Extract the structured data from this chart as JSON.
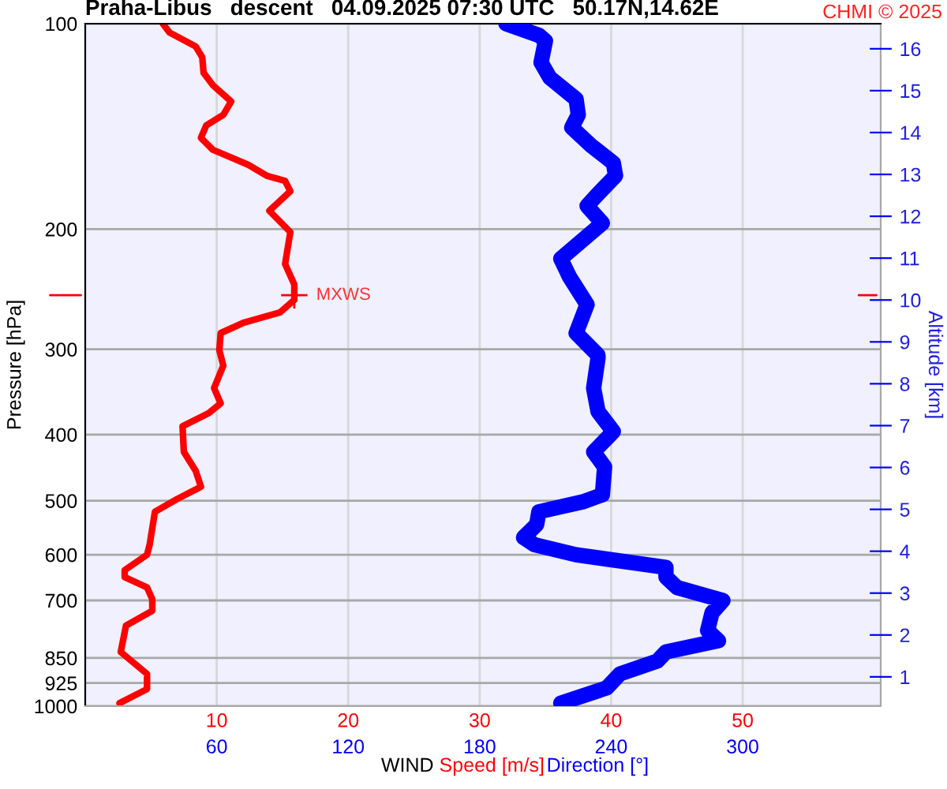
{
  "chart_data": {
    "type": "line",
    "title": "Praha-Libus   descent   04.09.2025 07:30 UTC   50.17N,14.62E",
    "xlabel": "WIND",
    "ylabel": "Pressure [hPa]",
    "y2label": "Altitude [km]",
    "annotations": [
      "CHMI © 2025",
      {
        "text": "MXWS",
        "x": 15.9,
        "y": 250
      }
    ],
    "log": "y",
    "grid": true,
    "line_style": "solid",
    "marker": "none",
    "xlim": [
      0,
      60.5
    ],
    "xticks": [
      10,
      20,
      30,
      40,
      50
    ],
    "x2lim": [
      0,
      363
    ],
    "x2ticks": [
      60,
      120,
      180,
      240,
      300
    ],
    "ylim": [
      1000,
      100
    ],
    "yticks": [
      100,
      200,
      300,
      400,
      500,
      600,
      700,
      850,
      925,
      1000
    ],
    "y2lim": [
      0.3,
      16.6
    ],
    "y2ticks": [
      1,
      2,
      3,
      4,
      5,
      6,
      7,
      8,
      9,
      10,
      11,
      12,
      13,
      14,
      15,
      16
    ],
    "series": [
      {
        "name": "Speed [m/s]",
        "color": "#ff0000",
        "x": [
          5.9,
          6.4,
          8.4,
          8.9,
          9.0,
          9.7,
          11.1,
          10.5,
          9.2,
          8.8,
          9.7,
          12.4,
          13.8,
          15.2,
          15.6,
          14.0,
          15.6,
          15.2,
          15.9,
          15.9,
          14.8,
          12.1,
          10.3,
          10.2,
          10.5,
          9.8,
          10.3,
          9.4,
          7.4,
          7.5,
          8.4,
          8.8,
          7.0,
          5.3,
          4.9,
          4.7,
          3.0,
          3.0,
          4.7,
          5.1,
          5.1,
          3.1,
          2.7,
          4.7,
          4.7,
          2.6
        ],
        "values": [
          100,
          103,
          108,
          112,
          118,
          123,
          130,
          136,
          141,
          147,
          153,
          161,
          167,
          170,
          176,
          188,
          202,
          225,
          241,
          254,
          265,
          274,
          284,
          301,
          317,
          342,
          360,
          372,
          389,
          424,
          452,
          477,
          497,
          519,
          580,
          600,
          632,
          647,
          670,
          697,
          725,
          762,
          833,
          897,
          944,
          990
        ]
      },
      {
        "name": "Direction [°]",
        "color": "#0000ff",
        "axis": "x2",
        "x": [
          192,
          207,
          210,
          208,
          212,
          224,
          225,
          222,
          231,
          241,
          242,
          233,
          229,
          236,
          217,
          221,
          229,
          224,
          234,
          234,
          232,
          234,
          241,
          232,
          237,
          236,
          227,
          207,
          206,
          200,
          205,
          224,
          265,
          265,
          270,
          291,
          286,
          284,
          289,
          265,
          261,
          244,
          238,
          217
        ],
        "values": [
          100,
          104,
          106,
          114,
          120,
          129,
          136,
          142,
          151,
          160,
          167,
          179,
          185,
          196,
          221,
          235,
          258,
          284,
          306,
          309,
          342,
          370,
          396,
          424,
          446,
          490,
          502,
          519,
          542,
          566,
          580,
          600,
          626,
          647,
          670,
          700,
          730,
          775,
          802,
          833,
          859,
          897,
          940,
          990
        ]
      }
    ]
  }
}
